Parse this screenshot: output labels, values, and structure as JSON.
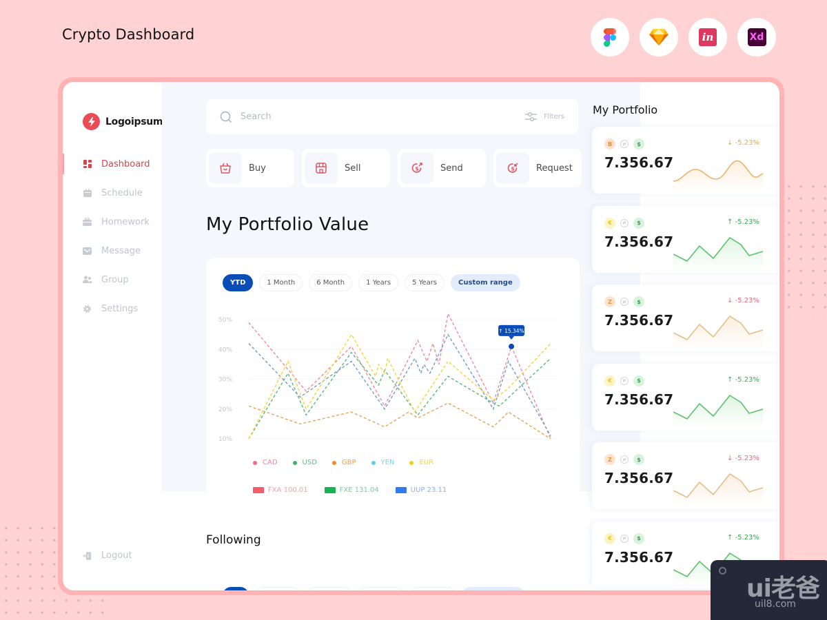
{
  "page": {
    "title": "Crypto Dashboard"
  },
  "tools": [
    {
      "name": "figma-icon"
    },
    {
      "name": "sketch-icon"
    },
    {
      "name": "invision-icon",
      "label": "in"
    },
    {
      "name": "xd-icon",
      "label": "Xd"
    }
  ],
  "sidebar": {
    "logo": "Logoipsum",
    "items": [
      {
        "label": "Dashboard",
        "icon": "dashboard-icon",
        "active": true
      },
      {
        "label": "Schedule",
        "icon": "calendar-icon"
      },
      {
        "label": "Homework",
        "icon": "briefcase-icon"
      },
      {
        "label": "Message",
        "icon": "mail-icon"
      },
      {
        "label": "Group",
        "icon": "group-icon"
      },
      {
        "label": "Settings",
        "icon": "gear-icon"
      }
    ],
    "logout": "Logout"
  },
  "search": {
    "placeholder": "Search",
    "value": "",
    "filters_label": "Filters"
  },
  "actions": [
    {
      "label": "Buy",
      "icon": "basket-icon"
    },
    {
      "label": "Sell",
      "icon": "store-icon"
    },
    {
      "label": "Send",
      "icon": "send-money-icon"
    },
    {
      "label": "Request",
      "icon": "request-money-icon"
    }
  ],
  "portfolio_value": {
    "title": "My Portfolio Value",
    "ranges": [
      {
        "label": "YTD",
        "state": "active"
      },
      {
        "label": "1 Month"
      },
      {
        "label": "6 Month"
      },
      {
        "label": "1 Years"
      },
      {
        "label": "5 Years"
      },
      {
        "label": "Custom range",
        "state": "custom"
      }
    ],
    "tooltip": "↑ 15.34%",
    "legend": [
      {
        "label": "CAD",
        "color": "#f06e82"
      },
      {
        "label": "USD",
        "color": "#3bb56a"
      },
      {
        "label": "GBP",
        "color": "#f08a2e"
      },
      {
        "label": "YEN",
        "color": "#5ed0ee"
      },
      {
        "label": "EUR",
        "color": "#f2cf1d"
      }
    ],
    "tickers": [
      {
        "label": "FXA 100.01",
        "color": "#f25c6c"
      },
      {
        "label": "FXE 131.04",
        "color": "#18b352"
      },
      {
        "label": "UUP 23.11",
        "color": "#2f7bf0"
      }
    ]
  },
  "chart_data": {
    "type": "line",
    "title": "My Portfolio Value",
    "xlabel": "",
    "ylabel": "",
    "ylim": [
      10,
      50
    ],
    "yticks": [
      "50%",
      "40%",
      "30%",
      "20%",
      "10%"
    ],
    "grid": true,
    "legend_position": "bottom",
    "x": [
      0,
      0.145,
      0.19,
      0.34,
      0.42,
      0.43,
      0.45,
      0.5,
      0.56,
      0.63,
      0.66,
      0.68,
      0.74,
      0.82,
      0.85,
      0.86,
      0.9,
      0.95,
      1.0
    ],
    "series": [
      {
        "name": "CAD",
        "color": "#f0889a",
        "points": [
          [
            0,
            49
          ],
          [
            0.19,
            26
          ],
          [
            0.34,
            41
          ],
          [
            0.45,
            21
          ],
          [
            0.56,
            43
          ],
          [
            0.59,
            36
          ],
          [
            0.61,
            42
          ],
          [
            0.63,
            35
          ],
          [
            0.66,
            52
          ],
          [
            0.81,
            22
          ],
          [
            0.87,
            41
          ],
          [
            1.0,
            10
          ]
        ]
      },
      {
        "name": "USD",
        "color": "#55b87c",
        "points": [
          [
            0,
            10
          ],
          [
            0.13,
            32
          ],
          [
            0.19,
            18
          ],
          [
            0.34,
            39
          ],
          [
            0.43,
            28
          ],
          [
            0.45,
            33
          ],
          [
            0.56,
            18
          ],
          [
            0.66,
            31
          ],
          [
            0.81,
            22
          ],
          [
            0.83,
            21
          ],
          [
            1.0,
            37
          ]
        ]
      },
      {
        "name": "GBP",
        "color": "#e9a25a",
        "points": [
          [
            0,
            21
          ],
          [
            0.17,
            15
          ],
          [
            0.34,
            19
          ],
          [
            0.45,
            14
          ],
          [
            0.53,
            19
          ],
          [
            0.56,
            17
          ],
          [
            0.66,
            22
          ],
          [
            0.81,
            14
          ],
          [
            0.86,
            19
          ],
          [
            1.0,
            10
          ]
        ]
      },
      {
        "name": "YEN",
        "color": "#6d9ad0",
        "points": [
          [
            0,
            42
          ],
          [
            0.17,
            24
          ],
          [
            0.34,
            36
          ],
          [
            0.45,
            20
          ],
          [
            0.55,
            37
          ],
          [
            0.57,
            32
          ],
          [
            0.58,
            35
          ],
          [
            0.6,
            32
          ],
          [
            0.66,
            45
          ],
          [
            0.81,
            20
          ],
          [
            0.86,
            36
          ],
          [
            1.0,
            11
          ]
        ]
      },
      {
        "name": "EUR",
        "color": "#f3d33a",
        "points": [
          [
            0,
            10
          ],
          [
            0.13,
            36
          ],
          [
            0.19,
            20
          ],
          [
            0.34,
            45
          ],
          [
            0.42,
            31
          ],
          [
            0.43,
            35
          ],
          [
            0.45,
            32
          ],
          [
            0.46,
            37
          ],
          [
            0.55,
            19
          ],
          [
            0.66,
            36
          ],
          [
            0.81,
            23
          ],
          [
            0.86,
            27
          ],
          [
            1.0,
            42
          ]
        ]
      }
    ],
    "highlight": {
      "series": "CAD",
      "x": 0.87,
      "y": 41,
      "label": "↑ 15.34%"
    }
  },
  "following": {
    "title": "Following"
  },
  "portfolio": {
    "title": "My Portfolio",
    "cards": [
      {
        "coin": "B",
        "coin_bg": "#fde3cf",
        "coin_color": "#f08a2e",
        "value": "7.356.67",
        "change": "↓ -5.23%",
        "change_color": "#e7a54a",
        "line": "#e9b46a",
        "fill": "#fdeedd",
        "shape": "wave"
      },
      {
        "coin": "€",
        "coin_bg": "#fdf3c4",
        "coin_color": "#f2c21d",
        "value": "7.356.67",
        "change": "↑ -5.23%",
        "change_color": "#3aa852",
        "line": "#5cc16a",
        "fill": "#dff5e2",
        "shape": "zig"
      },
      {
        "coin": "Z",
        "coin_bg": "#fde3cf",
        "coin_color": "#e59a2b",
        "value": "7.356.67",
        "change": "↓ -5.23%",
        "change_color": "#e8687a",
        "line": "#e2be86",
        "fill": "#fbeee0",
        "shape": "zig"
      },
      {
        "coin": "€",
        "coin_bg": "#fdf3c4",
        "coin_color": "#f2c21d",
        "value": "7.356.67",
        "change": "↑ -5.23%",
        "change_color": "#3aa852",
        "line": "#5cc16a",
        "fill": "#dff5e2",
        "shape": "zig"
      },
      {
        "coin": "Z",
        "coin_bg": "#fde3cf",
        "coin_color": "#e59a2b",
        "value": "7.356.67",
        "change": "↓ -5.23%",
        "change_color": "#e8687a",
        "line": "#e2be86",
        "fill": "#fbeee0",
        "shape": "zig"
      },
      {
        "coin": "€",
        "coin_bg": "#fdf3c4",
        "coin_color": "#f2c21d",
        "value": "7.356.67",
        "change": "↑ -5.23%",
        "change_color": "#3aa852",
        "line": "#5cc16a",
        "fill": "#dff5e2",
        "shape": "zig"
      }
    ]
  },
  "watermark": {
    "big": "ui老爸",
    "small": "uil8.com"
  }
}
